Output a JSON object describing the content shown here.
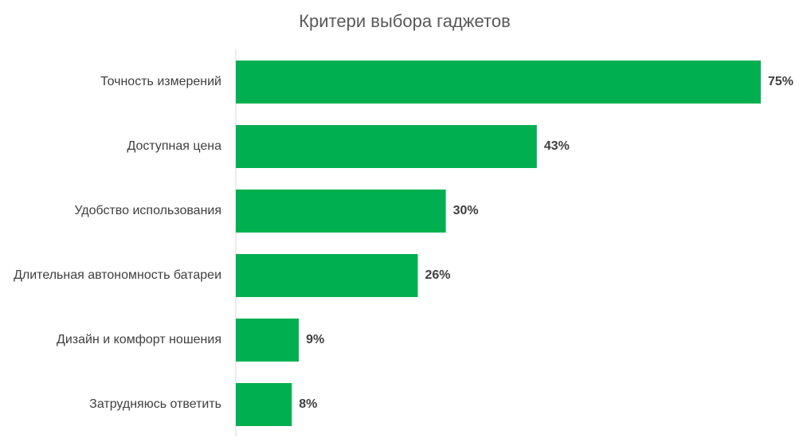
{
  "chart_data": {
    "type": "bar",
    "orientation": "horizontal",
    "title": "Критери выбора гаджетов",
    "categories": [
      "Точность измерений",
      "Доступная цена",
      "Удобство использования",
      "Длительная автономность батареи",
      "Дизайн и комфорт ношения",
      "Затрудняюсь ответить"
    ],
    "values": [
      75,
      43,
      30,
      26,
      9,
      8
    ],
    "value_labels": [
      "75%",
      "43%",
      "30%",
      "26%",
      "9%",
      "8%"
    ],
    "color": "#00b050"
  }
}
